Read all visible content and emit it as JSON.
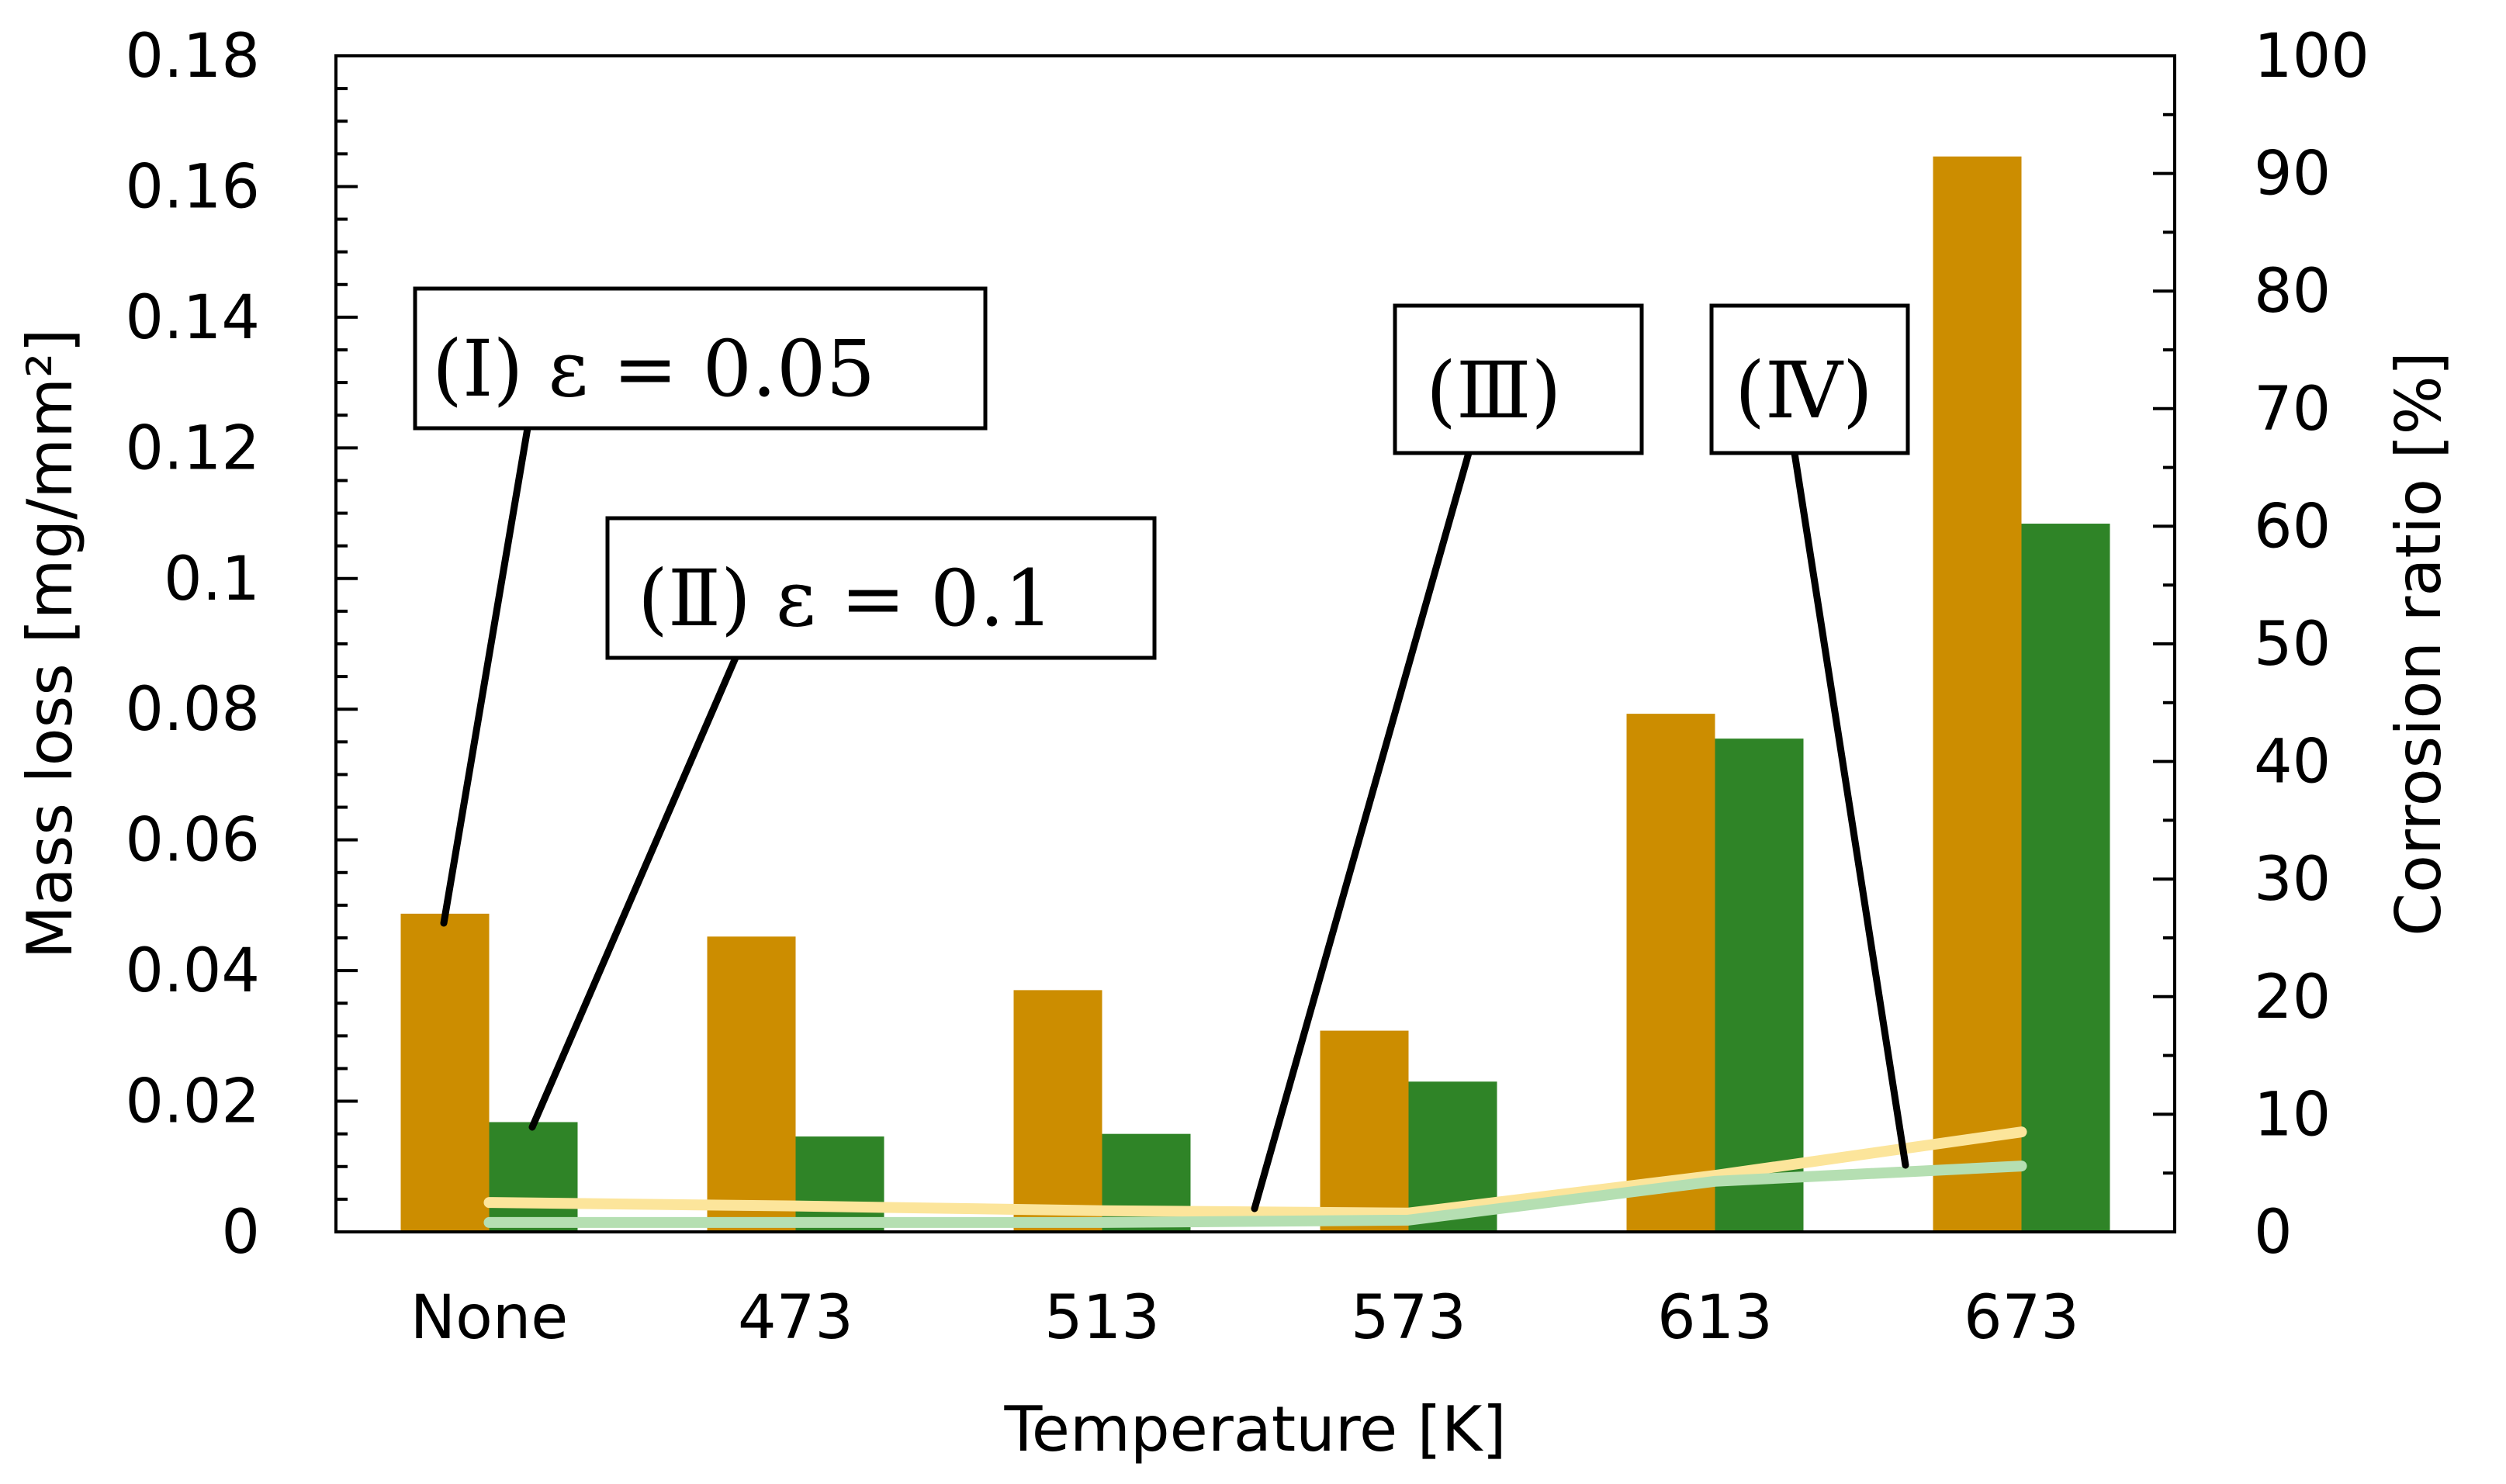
{
  "chart_data": {
    "type": "bar",
    "title": "",
    "xlabel": "Temperature [K]",
    "ylabel": "Mass loss [mg/mm²]",
    "y2label": "Corrosion ratio [%]",
    "categories": [
      "None",
      "473",
      "513",
      "573",
      "613",
      "673"
    ],
    "ylim": [
      0,
      0.18
    ],
    "yticks": [
      "0",
      "0.02",
      "0.04",
      "0.06",
      "0.08",
      "0.1",
      "0.12",
      "0.14",
      "0.16",
      "0.18"
    ],
    "y2lim": [
      0,
      100
    ],
    "y2ticks": [
      "0",
      "10",
      "20",
      "30",
      "40",
      "50",
      "60",
      "70",
      "80",
      "90",
      "100"
    ],
    "grid": false,
    "colors": {
      "bar1": "#cc8d00",
      "bar2": "#2f8427",
      "line1": "#fce59b",
      "line2": "#b5dfb2"
    },
    "series": [
      {
        "name": "ε = 0.05 mass loss",
        "kind": "bar",
        "axis": "left",
        "values": [
          0.0487,
          0.0452,
          0.037,
          0.0308,
          0.0793,
          0.1646
        ]
      },
      {
        "name": "ε = 0.1 mass loss",
        "kind": "bar",
        "axis": "left",
        "values": [
          0.0168,
          0.0146,
          0.015,
          0.023,
          0.0755,
          0.1084
        ]
      },
      {
        "name": "ε = 0.05 corrosion ratio",
        "kind": "line",
        "axis": "right",
        "values": [
          2.5,
          2.2,
          1.8,
          1.6,
          4.8,
          8.5
        ]
      },
      {
        "name": "ε = 0.1 corrosion ratio",
        "kind": "line",
        "axis": "right",
        "values": [
          0.8,
          0.8,
          0.8,
          1.0,
          4.3,
          5.6
        ]
      }
    ],
    "annotations": [
      {
        "prefix": "(",
        "numeral": "Ⅰ",
        "suffix": ") ε = 0.05"
      },
      {
        "prefix": "(",
        "numeral": "Ⅱ",
        "suffix": ") ε = 0.1"
      },
      {
        "prefix": "(",
        "numeral": "Ⅲ",
        "suffix": ")"
      },
      {
        "prefix": "(",
        "numeral": "Ⅳ",
        "suffix": ")"
      }
    ]
  }
}
